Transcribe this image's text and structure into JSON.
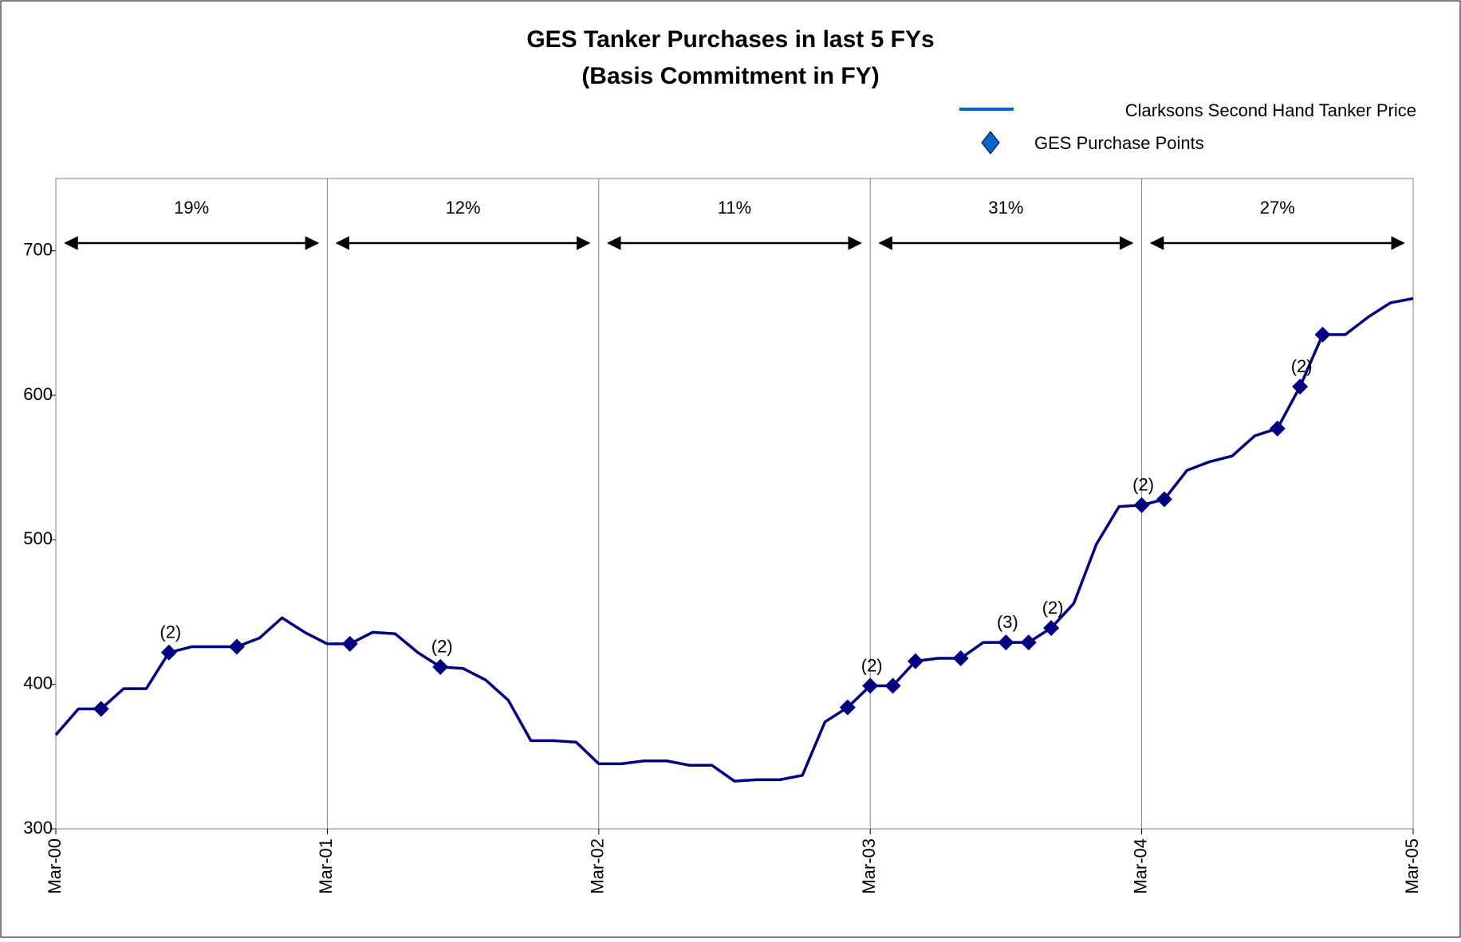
{
  "chart_data": {
    "type": "line",
    "title": "GES Tanker Purchases in last 5 FYs",
    "subtitle": "(Basis Commitment in FY)",
    "categories": [
      "Mar-00",
      null,
      null,
      null,
      null,
      null,
      null,
      null,
      null,
      null,
      null,
      null,
      "Mar-01",
      null,
      null,
      null,
      null,
      null,
      null,
      null,
      null,
      null,
      null,
      null,
      "Mar-02",
      null,
      null,
      null,
      null,
      null,
      null,
      null,
      null,
      null,
      null,
      null,
      "Mar-03",
      null,
      null,
      null,
      null,
      null,
      null,
      null,
      null,
      null,
      null,
      null,
      "Mar-04",
      null,
      null,
      null,
      null,
      null,
      null,
      null,
      null,
      null,
      null,
      null,
      "Mar-05"
    ],
    "series": [
      {
        "name": "Clarksons Second Hand Tanker Price",
        "color": "#000080",
        "values": [
          365,
          383,
          383,
          397,
          397,
          422,
          426,
          426,
          426,
          432,
          446,
          436,
          428,
          428,
          436,
          435,
          422,
          412,
          411,
          403,
          389,
          361,
          361,
          360,
          345,
          345,
          347,
          347,
          344,
          344,
          333,
          334,
          334,
          337,
          374,
          384,
          399,
          399,
          416,
          418,
          418,
          429,
          429,
          429,
          439,
          456,
          497,
          523,
          524,
          528,
          548,
          554,
          558,
          572,
          577,
          606,
          642,
          642,
          654,
          664,
          667
        ]
      },
      {
        "name": "GES Purchase Points",
        "color": "#000080",
        "marker": "diamond",
        "values": [
          null,
          null,
          383,
          null,
          null,
          422,
          null,
          null,
          426,
          null,
          null,
          null,
          null,
          428,
          null,
          null,
          null,
          412,
          null,
          null,
          null,
          null,
          null,
          null,
          null,
          null,
          null,
          null,
          null,
          null,
          null,
          null,
          null,
          null,
          null,
          384,
          399,
          399,
          416,
          null,
          418,
          null,
          429,
          429,
          439,
          null,
          null,
          null,
          524,
          528,
          null,
          null,
          null,
          null,
          577,
          606,
          642,
          null,
          null,
          null,
          null
        ],
        "point_labels": [
          null,
          null,
          null,
          null,
          null,
          "(2)",
          null,
          null,
          null,
          null,
          null,
          null,
          null,
          null,
          null,
          null,
          null,
          "(2)",
          null,
          null,
          null,
          null,
          null,
          null,
          null,
          null,
          null,
          null,
          null,
          null,
          null,
          null,
          null,
          null,
          null,
          null,
          "(2)",
          null,
          null,
          null,
          null,
          null,
          "(3)",
          null,
          "(2)",
          null,
          null,
          null,
          "(2)",
          null,
          null,
          null,
          null,
          null,
          null,
          "(2)",
          null,
          null,
          null,
          null,
          null
        ]
      }
    ],
    "period_labels": [
      "19%",
      "12%",
      "11%",
      "31%",
      "27%"
    ],
    "ylim": [
      300,
      750
    ],
    "yticks": [
      300,
      400,
      500,
      600,
      700
    ],
    "grid_x": true
  }
}
